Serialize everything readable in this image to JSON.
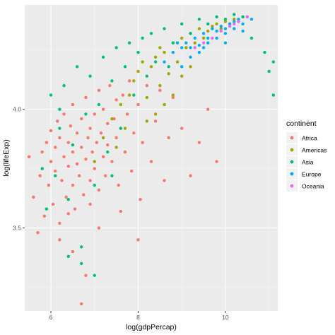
{
  "chart_data": {
    "type": "scatter",
    "xlabel": "log(gdpPercap)",
    "ylabel": "log(lifeExp)",
    "xlim": [
      5.4,
      11.2
    ],
    "ylim": [
      3.15,
      4.44
    ],
    "x_ticks": [
      6,
      8,
      10
    ],
    "x_tick_labels": [
      "6",
      "8",
      "10"
    ],
    "y_ticks": [
      3.5,
      4.0
    ],
    "y_tick_labels": [
      "3.5",
      "4.0"
    ],
    "grid": true,
    "background": "#EBEBEB",
    "legend": {
      "title": "continent",
      "placement": "right"
    },
    "series": [
      {
        "name": "Africa",
        "color": "#F8766D",
        "points": [
          [
            5.5,
            3.8
          ],
          [
            5.6,
            3.63
          ],
          [
            5.7,
            3.48
          ],
          [
            5.75,
            3.72
          ],
          [
            5.8,
            3.82
          ],
          [
            5.85,
            3.55
          ],
          [
            5.9,
            3.86
          ],
          [
            5.95,
            3.68
          ],
          [
            6.0,
            3.78
          ],
          [
            6.0,
            3.91
          ],
          [
            6.05,
            3.6
          ],
          [
            6.1,
            3.84
          ],
          [
            6.1,
            3.74
          ],
          [
            6.15,
            3.95
          ],
          [
            6.2,
            3.52
          ],
          [
            6.2,
            3.88
          ],
          [
            6.25,
            3.7
          ],
          [
            6.3,
            3.8
          ],
          [
            6.3,
            3.98
          ],
          [
            6.35,
            3.63
          ],
          [
            6.4,
            3.86
          ],
          [
            6.4,
            3.76
          ],
          [
            6.45,
            3.93
          ],
          [
            6.5,
            3.68
          ],
          [
            6.5,
            3.82
          ],
          [
            6.5,
            4.02
          ],
          [
            6.55,
            3.58
          ],
          [
            6.6,
            3.9
          ],
          [
            6.6,
            3.77
          ],
          [
            6.65,
            3.72
          ],
          [
            6.7,
            3.96
          ],
          [
            6.7,
            3.84
          ],
          [
            6.75,
            3.64
          ],
          [
            6.8,
            3.79
          ],
          [
            6.8,
            4.05
          ],
          [
            6.85,
            3.88
          ],
          [
            6.9,
            3.7
          ],
          [
            6.9,
            3.92
          ],
          [
            6.95,
            3.82
          ],
          [
            7.0,
            3.98
          ],
          [
            7.0,
            3.75
          ],
          [
            7.05,
            3.86
          ],
          [
            7.1,
            4.08
          ],
          [
            7.1,
            3.66
          ],
          [
            7.15,
            3.9
          ],
          [
            7.2,
            3.8
          ],
          [
            7.2,
            4.0
          ],
          [
            7.25,
            3.72
          ],
          [
            7.3,
            3.94
          ],
          [
            7.3,
            3.85
          ],
          [
            7.35,
            4.1
          ],
          [
            7.4,
            3.78
          ],
          [
            7.45,
            3.96
          ],
          [
            7.5,
            3.88
          ],
          [
            7.5,
            4.04
          ],
          [
            7.55,
            3.68
          ],
          [
            7.6,
            3.92
          ],
          [
            7.65,
            4.06
          ],
          [
            7.7,
            3.82
          ],
          [
            7.75,
            3.98
          ],
          [
            7.8,
            4.12
          ],
          [
            7.85,
            3.74
          ],
          [
            7.9,
            3.9
          ],
          [
            8.0,
            4.02
          ],
          [
            8.05,
            3.62
          ],
          [
            8.1,
            3.86
          ],
          [
            8.2,
            4.1
          ],
          [
            8.3,
            3.78
          ],
          [
            8.4,
            3.95
          ],
          [
            8.5,
            4.08
          ],
          [
            8.6,
            3.7
          ],
          [
            8.7,
            3.88
          ],
          [
            8.8,
            4.05
          ],
          [
            9.0,
            3.92
          ],
          [
            9.2,
            3.72
          ],
          [
            9.4,
            3.86
          ],
          [
            9.6,
            4.0
          ],
          [
            9.8,
            3.78
          ],
          [
            6.2,
            3.45
          ],
          [
            6.5,
            3.4
          ],
          [
            6.7,
            3.18
          ],
          [
            6.8,
            3.3
          ],
          [
            7.1,
            3.5
          ],
          [
            7.6,
            3.57
          ],
          [
            8.0,
            3.45
          ],
          [
            6.4,
            3.56
          ],
          [
            6.9,
            3.6
          ]
        ]
      },
      {
        "name": "Americas",
        "color": "#A3A500",
        "points": [
          [
            7.0,
            3.78
          ],
          [
            7.2,
            3.88
          ],
          [
            7.4,
            3.96
          ],
          [
            7.6,
            4.02
          ],
          [
            7.8,
            4.06
          ],
          [
            7.9,
            4.12
          ],
          [
            8.0,
            4.16
          ],
          [
            8.1,
            4.2
          ],
          [
            8.2,
            4.05
          ],
          [
            8.3,
            4.18
          ],
          [
            8.4,
            4.22
          ],
          [
            8.5,
            4.1
          ],
          [
            8.5,
            4.26
          ],
          [
            8.6,
            4.24
          ],
          [
            8.7,
            4.15
          ],
          [
            8.8,
            4.28
          ],
          [
            8.9,
            4.2
          ],
          [
            9.0,
            4.3
          ],
          [
            9.1,
            4.26
          ],
          [
            9.2,
            4.32
          ],
          [
            9.3,
            4.28
          ],
          [
            9.4,
            4.34
          ],
          [
            9.5,
            4.3
          ],
          [
            9.6,
            4.33
          ],
          [
            9.7,
            4.35
          ],
          [
            9.8,
            4.36
          ],
          [
            9.9,
            4.34
          ],
          [
            10.0,
            4.37
          ],
          [
            10.1,
            4.36
          ],
          [
            10.2,
            4.38
          ],
          [
            10.3,
            4.37
          ],
          [
            10.4,
            4.39
          ],
          [
            8.2,
            3.95
          ],
          [
            8.4,
            3.98
          ],
          [
            8.6,
            4.02
          ],
          [
            8.8,
            4.06
          ],
          [
            9.0,
            4.14
          ],
          [
            9.2,
            4.18
          ],
          [
            7.5,
            3.84
          ],
          [
            7.7,
            3.92
          ]
        ]
      },
      {
        "name": "Asia",
        "color": "#00BF7D",
        "points": [
          [
            5.9,
            3.58
          ],
          [
            6.0,
            4.06
          ],
          [
            6.1,
            3.72
          ],
          [
            6.2,
            3.92
          ],
          [
            6.3,
            4.1
          ],
          [
            6.4,
            3.62
          ],
          [
            6.5,
            3.85
          ],
          [
            6.6,
            4.18
          ],
          [
            6.7,
            3.42
          ],
          [
            6.8,
            3.98
          ],
          [
            6.9,
            4.14
          ],
          [
            7.0,
            3.68
          ],
          [
            7.1,
            4.02
          ],
          [
            7.2,
            4.22
          ],
          [
            7.3,
            3.82
          ],
          [
            7.4,
            4.12
          ],
          [
            7.5,
            4.26
          ],
          [
            7.6,
            3.92
          ],
          [
            7.7,
            4.18
          ],
          [
            7.8,
            4.28
          ],
          [
            7.9,
            4.06
          ],
          [
            8.0,
            4.24
          ],
          [
            8.1,
            4.3
          ],
          [
            8.2,
            4.14
          ],
          [
            8.3,
            4.32
          ],
          [
            8.4,
            4.2
          ],
          [
            8.6,
            4.34
          ],
          [
            8.8,
            4.28
          ],
          [
            9.0,
            4.36
          ],
          [
            9.2,
            4.32
          ],
          [
            9.4,
            4.38
          ],
          [
            9.6,
            4.36
          ],
          [
            9.8,
            4.39
          ],
          [
            10.0,
            4.38
          ],
          [
            10.2,
            4.4
          ],
          [
            10.4,
            4.39
          ],
          [
            10.9,
            4.24
          ],
          [
            11.0,
            4.16
          ],
          [
            11.1,
            4.2
          ],
          [
            11.1,
            4.06
          ],
          [
            10.6,
            4.3
          ],
          [
            6.4,
            3.38
          ],
          [
            6.7,
            3.35
          ],
          [
            7.0,
            3.3
          ],
          [
            5.8,
            3.75
          ],
          [
            6.2,
            4.0
          ],
          [
            7.4,
            3.72
          ],
          [
            8.7,
            4.18
          ]
        ]
      },
      {
        "name": "Europe",
        "color": "#00B0F6",
        "points": [
          [
            8.6,
            4.2
          ],
          [
            8.8,
            4.24
          ],
          [
            9.0,
            4.26
          ],
          [
            9.1,
            4.28
          ],
          [
            9.2,
            4.22
          ],
          [
            9.3,
            4.3
          ],
          [
            9.4,
            4.27
          ],
          [
            9.5,
            4.32
          ],
          [
            9.6,
            4.3
          ],
          [
            9.7,
            4.34
          ],
          [
            9.8,
            4.33
          ],
          [
            9.9,
            4.35
          ],
          [
            10.0,
            4.34
          ],
          [
            10.1,
            4.36
          ],
          [
            10.2,
            4.37
          ],
          [
            10.3,
            4.38
          ],
          [
            10.4,
            4.36
          ],
          [
            10.5,
            4.39
          ],
          [
            10.6,
            4.38
          ],
          [
            9.0,
            4.18
          ],
          [
            9.2,
            4.26
          ],
          [
            9.4,
            4.24
          ],
          [
            9.6,
            4.28
          ],
          [
            9.8,
            4.3
          ],
          [
            10.0,
            4.32
          ],
          [
            10.2,
            4.34
          ],
          [
            10.4,
            4.33
          ],
          [
            10.0,
            4.28
          ],
          [
            9.5,
            4.26
          ],
          [
            8.9,
            4.28
          ]
        ]
      },
      {
        "name": "Oceania",
        "color": "#E76BF3",
        "points": [
          [
            9.3,
            4.26
          ],
          [
            9.5,
            4.28
          ],
          [
            9.7,
            4.3
          ],
          [
            9.9,
            4.33
          ],
          [
            10.1,
            4.35
          ],
          [
            10.3,
            4.37
          ],
          [
            10.5,
            4.39
          ],
          [
            10.2,
            4.36
          ]
        ]
      }
    ]
  }
}
